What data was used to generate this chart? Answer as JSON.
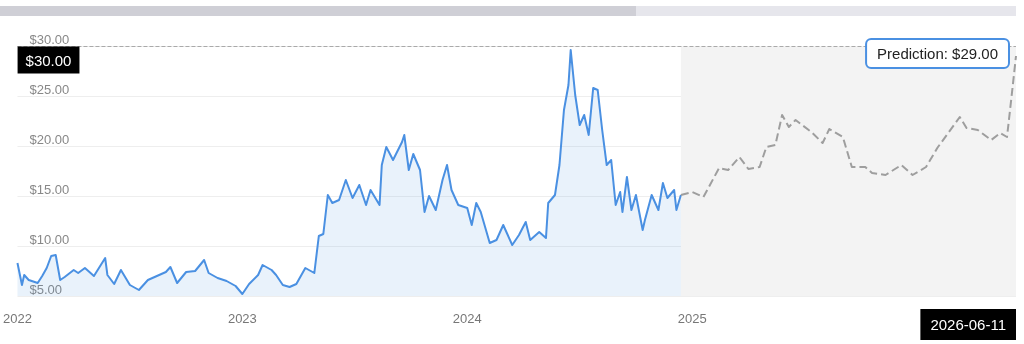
{
  "chart_data": {
    "type": "area",
    "series": [
      {
        "color": "#4a90e2",
        "x": [
          2022.0,
          2022.02,
          2022.03,
          2022.05,
          2022.09,
          2022.11,
          2022.13,
          2022.15,
          2022.17,
          2022.19,
          2022.21,
          2022.25,
          2022.27,
          2022.3,
          2022.34,
          2022.39,
          2022.4,
          2022.43,
          2022.46,
          2022.5,
          2022.54,
          2022.58,
          2022.62,
          2022.66,
          2022.68,
          2022.71,
          2022.75,
          2022.79,
          2022.83,
          2022.85,
          2022.89,
          2022.93,
          2022.97,
          2023.0,
          2023.03,
          2023.07,
          2023.09,
          2023.13,
          2023.15,
          2023.18,
          2023.21,
          2023.24,
          2023.28,
          2023.32,
          2023.34,
          2023.36,
          2023.38,
          2023.4,
          2023.43,
          2023.46,
          2023.49,
          2023.52,
          2023.55,
          2023.57,
          2023.61,
          2023.62,
          2023.64,
          2023.67,
          2023.71,
          2023.72,
          2023.74,
          2023.76,
          2023.79,
          2023.81,
          2023.83,
          2023.86,
          2023.89,
          2023.91,
          2023.93,
          2023.96,
          2024.0,
          2024.02,
          2024.04,
          2024.06,
          2024.1,
          2024.13,
          2024.16,
          2024.2,
          2024.23,
          2024.26,
          2024.28,
          2024.32,
          2024.35,
          2024.36,
          2024.39,
          2024.41,
          2024.43,
          2024.45,
          2024.46,
          2024.48,
          2024.5,
          2024.52,
          2024.54,
          2024.56,
          2024.58,
          2024.6,
          2024.62,
          2024.64,
          2024.66,
          2024.68,
          2024.69,
          2024.71,
          2024.73,
          2024.75,
          2024.78,
          2024.79,
          2024.82,
          2024.85,
          2024.87,
          2024.89,
          2024.92,
          2024.93,
          2024.95
        ],
        "values": [
          8.3,
          6.1,
          7.1,
          6.6,
          6.3,
          7.0,
          7.8,
          9.0,
          9.1,
          6.6,
          6.9,
          7.6,
          7.3,
          7.8,
          7.0,
          8.8,
          7.1,
          6.2,
          7.6,
          6.1,
          5.6,
          6.6,
          7.0,
          7.4,
          7.9,
          6.3,
          7.4,
          7.5,
          8.6,
          7.3,
          6.8,
          6.5,
          6.0,
          5.2,
          6.2,
          7.1,
          8.1,
          7.6,
          7.1,
          6.1,
          5.9,
          6.2,
          7.8,
          7.3,
          11.0,
          11.2,
          15.1,
          14.3,
          14.6,
          16.6,
          14.8,
          16.1,
          14.1,
          15.6,
          14.1,
          18.1,
          19.9,
          18.6,
          20.4,
          21.1,
          17.6,
          19.2,
          17.6,
          13.4,
          15.0,
          13.6,
          16.6,
          18.1,
          15.6,
          14.1,
          13.8,
          12.1,
          14.3,
          13.4,
          10.3,
          10.6,
          12.1,
          10.1,
          11.1,
          12.4,
          10.6,
          11.4,
          10.8,
          14.3,
          15.1,
          18.1,
          23.6,
          26.1,
          29.6,
          25.1,
          22.1,
          23.1,
          21.1,
          25.8,
          25.6,
          21.6,
          18.1,
          18.6,
          14.1,
          15.4,
          13.4,
          16.9,
          13.6,
          15.1,
          11.6,
          12.6,
          15.1,
          13.6,
          16.3,
          14.8,
          15.6,
          13.6,
          15.1
        ]
      },
      {
        "type": "line",
        "color": "#9e9e9e",
        "line_style": "dashed",
        "x": [
          2024.95,
          2025.0,
          2025.05,
          2025.12,
          2025.16,
          2025.21,
          2025.25,
          2025.3,
          2025.33,
          2025.37,
          2025.4,
          2025.43,
          2025.46,
          2025.53,
          2025.58,
          2025.61,
          2025.67,
          2025.71,
          2025.77,
          2025.8,
          2025.86,
          2025.93,
          2025.98,
          2026.04,
          2026.09,
          2026.19,
          2026.22,
          2026.27,
          2026.33,
          2026.37,
          2026.4,
          2026.42,
          2026.44
        ],
        "values": [
          15.1,
          15.4,
          14.9,
          17.8,
          17.6,
          18.9,
          17.7,
          17.9,
          19.9,
          20.1,
          23.1,
          21.9,
          22.6,
          21.4,
          20.3,
          21.7,
          20.9,
          17.9,
          17.9,
          17.3,
          17.1,
          18.1,
          17.1,
          17.9,
          19.8,
          22.9,
          21.8,
          21.6,
          20.6,
          21.3,
          20.9,
          24.9,
          29.0
        ]
      }
    ],
    "xlim": [
      2022,
      2026.44
    ],
    "xticks": [
      2022,
      2023,
      2024,
      2025
    ],
    "ylim": [
      5,
      30
    ],
    "yticks": [
      {
        "value": 5,
        "label": "$5.00"
      },
      {
        "value": 10,
        "label": "$10.00"
      },
      {
        "value": 15,
        "label": "$15.00"
      },
      {
        "value": 20,
        "label": "$20.00"
      },
      {
        "value": 25,
        "label": "$25.00"
      },
      {
        "value": 30,
        "label": "$30.00"
      }
    ],
    "grid": "y",
    "ref_lines": [
      {
        "axis": "y",
        "value": 30,
        "label": "$30.00",
        "color": "#aaaaaa",
        "line_style": "dashed"
      }
    ],
    "bands": [
      {
        "axis": "x",
        "from": 2024.95,
        "to": 2026.44,
        "color": "#f3f3f3"
      }
    ],
    "annotations": [
      {
        "text": "Prediction: $29.00",
        "x": 2026.44,
        "y": 29
      },
      "2026-06-11"
    ]
  }
}
